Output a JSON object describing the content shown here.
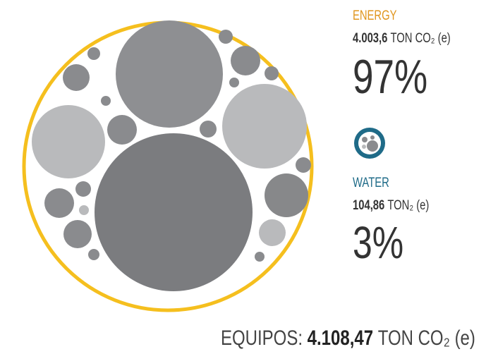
{
  "energy": {
    "label": "ENERGY",
    "amount": "4.003,6",
    "unit": "TON CO₂ (e)",
    "percent": "97%"
  },
  "water": {
    "label": "WATER",
    "amount": "104,86",
    "unit": "TON₂ (e)",
    "percent": "3%"
  },
  "total": {
    "label": "EQUIPOS:",
    "amount": "4.108,47",
    "unit": "TON CO₂ (e)"
  }
}
